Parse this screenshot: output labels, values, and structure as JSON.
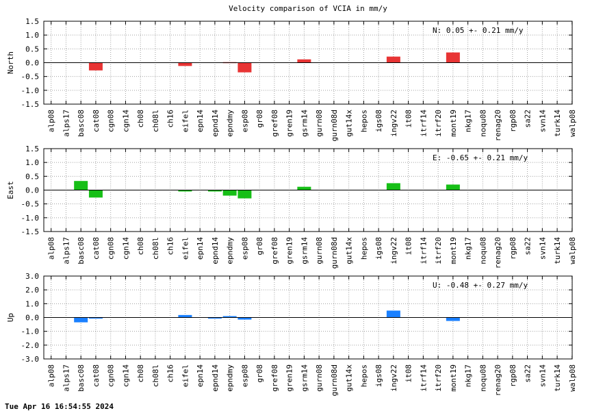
{
  "title": "Velocity comparison of VCIA in mm/y",
  "timestamp": "Tue Apr 16 16:54:55 2024",
  "chart_data": [
    {
      "type": "bar",
      "ylabel": "North",
      "color": "#e83434",
      "ylim": [
        -1.5,
        1.5
      ],
      "yticks": [
        -1.5,
        -1.0,
        -0.5,
        0.0,
        0.5,
        1.0,
        1.5
      ],
      "tick_labels": [
        "-1.5",
        "-1.0",
        "-0.5",
        "0.0",
        "0.5",
        "1.0",
        "1.5"
      ],
      "annotation": "N:   0.05 +-  0.21 mm/y",
      "grid": true,
      "categories": [
        "alp08",
        "alps17",
        "basc08",
        "cat08",
        "cgn08",
        "cgn14",
        "ch08",
        "ch08l",
        "ch16",
        "eifel",
        "epn14",
        "epnd14",
        "epndmy",
        "esp08",
        "gr08",
        "gref08",
        "gren19",
        "gsrm14",
        "gurn08",
        "gurn08d",
        "gut14x",
        "hepos",
        "igs08",
        "ingv22",
        "it08",
        "itrf14",
        "itrf20",
        "mont19",
        "nkg17",
        "noqu08",
        "renag20",
        "rgp08",
        "sa22",
        "svn14",
        "turk14",
        "walp08"
      ],
      "values": [
        null,
        null,
        null,
        -0.28,
        null,
        null,
        null,
        null,
        null,
        -0.12,
        null,
        null,
        0.02,
        -0.35,
        null,
        null,
        null,
        0.12,
        null,
        null,
        null,
        null,
        null,
        0.22,
        null,
        null,
        null,
        0.37,
        null,
        null,
        null,
        null,
        null,
        null,
        null,
        null
      ]
    },
    {
      "type": "bar",
      "ylabel": "East",
      "color": "#16bf16",
      "ylim": [
        -1.5,
        1.5
      ],
      "yticks": [
        -1.5,
        -1.0,
        -0.5,
        0.0,
        0.5,
        1.0,
        1.5
      ],
      "tick_labels": [
        "-1.5",
        "-1.0",
        "-0.5",
        "0.0",
        "0.5",
        "1.0",
        "1.5"
      ],
      "annotation": "E:  -0.65 +-  0.21 mm/y",
      "grid": true,
      "categories": [
        "alp08",
        "alps17",
        "basc08",
        "cat08",
        "cgn08",
        "cgn14",
        "ch08",
        "ch08l",
        "ch16",
        "eifel",
        "epn14",
        "epnd14",
        "epndmy",
        "esp08",
        "gr08",
        "gref08",
        "gren19",
        "gsrm14",
        "gurn08",
        "gurn08d",
        "gut14x",
        "hepos",
        "igs08",
        "ingv22",
        "it08",
        "itrf14",
        "itrf20",
        "mont19",
        "nkg17",
        "noqu08",
        "renag20",
        "rgp08",
        "sa22",
        "svn14",
        "turk14",
        "walp08"
      ],
      "values": [
        null,
        null,
        0.33,
        -0.27,
        null,
        null,
        null,
        null,
        null,
        -0.05,
        null,
        -0.05,
        -0.2,
        -0.3,
        null,
        null,
        null,
        0.12,
        null,
        null,
        null,
        null,
        null,
        0.25,
        null,
        null,
        null,
        0.2,
        null,
        null,
        null,
        null,
        null,
        null,
        null,
        null
      ]
    },
    {
      "type": "bar",
      "ylabel": "Up",
      "color": "#1a80ff",
      "ylim": [
        -3.0,
        3.0
      ],
      "yticks": [
        -3.0,
        -2.0,
        -1.0,
        0.0,
        1.0,
        2.0,
        3.0
      ],
      "tick_labels": [
        "-3.0",
        "-2.0",
        "-1.0",
        "0.0",
        "1.0",
        "2.0",
        "3.0"
      ],
      "annotation": "U:  -0.48 +-  0.27 mm/y",
      "grid": true,
      "categories": [
        "alp08",
        "alps17",
        "basc08",
        "cat08",
        "cgn08",
        "cgn14",
        "ch08",
        "ch08l",
        "ch16",
        "eifel",
        "epn14",
        "epnd14",
        "epndmy",
        "esp08",
        "gr08",
        "gref08",
        "gren19",
        "gsrm14",
        "gurn08",
        "gurn08d",
        "gut14x",
        "hepos",
        "igs08",
        "ingv22",
        "it08",
        "itrf14",
        "itrf20",
        "mont19",
        "nkg17",
        "noqu08",
        "renag20",
        "rgp08",
        "sa22",
        "svn14",
        "turk14",
        "walp08"
      ],
      "values": [
        null,
        null,
        -0.35,
        -0.08,
        null,
        null,
        null,
        null,
        null,
        0.18,
        null,
        -0.08,
        0.1,
        -0.15,
        null,
        null,
        null,
        null,
        null,
        null,
        null,
        null,
        null,
        0.5,
        null,
        null,
        null,
        -0.25,
        null,
        null,
        null,
        null,
        null,
        null,
        null,
        null
      ]
    }
  ]
}
